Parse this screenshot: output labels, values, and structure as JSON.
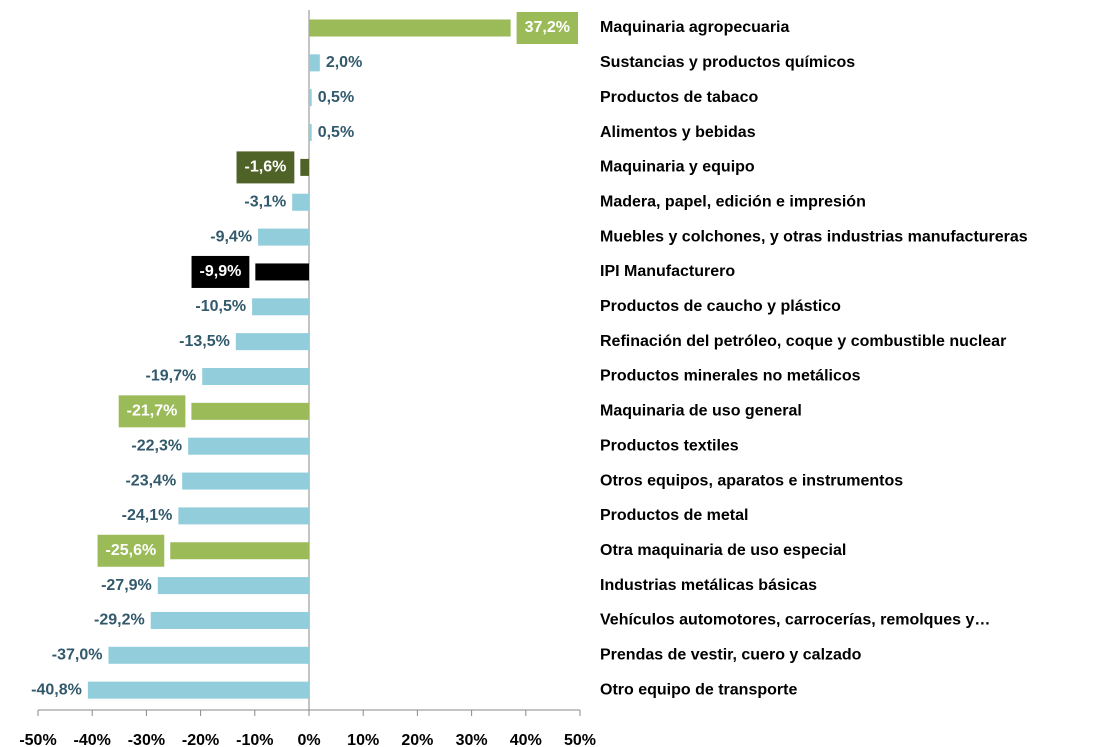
{
  "chart_data": {
    "type": "bar",
    "orientation": "horizontal",
    "categories": [
      "Maquinaria agropecuaria",
      "Sustancias y productos químicos",
      "Productos de tabaco",
      "Alimentos y bebidas",
      "Maquinaria y equipo",
      "Madera, papel, edición e impresión",
      "Muebles y colchones, y otras industrias manufactureras",
      "IPI Manufacturero",
      "Productos de caucho y plástico",
      "Refinación del petróleo, coque y combustible nuclear",
      "Productos minerales no metálicos",
      "Maquinaria de uso general",
      "Productos textiles",
      "Otros equipos, aparatos e instrumentos",
      "Productos de metal",
      "Otra maquinaria de uso especial",
      "Industrias metálicas básicas",
      "Vehículos automotores, carrocerías, remolques y…",
      "Prendas de vestir, cuero y calzado",
      "Otro equipo de transporte"
    ],
    "values": [
      37.2,
      2.0,
      0.5,
      0.5,
      -1.6,
      -3.1,
      -9.4,
      -9.9,
      -10.5,
      -13.5,
      -19.7,
      -21.7,
      -22.3,
      -23.4,
      -24.1,
      -25.6,
      -27.9,
      -29.2,
      -37.0,
      -40.8
    ],
    "value_labels": [
      "37,2%",
      "2,0%",
      "0,5%",
      "0,5%",
      "-1,6%",
      "-3,1%",
      "-9,4%",
      "-9,9%",
      "-10,5%",
      "-13,5%",
      "-19,7%",
      "-21,7%",
      "-22,3%",
      "-23,4%",
      "-24,1%",
      "-25,6%",
      "-27,9%",
      "-29,2%",
      "-37,0%",
      "-40,8%"
    ],
    "color": "#92cddc",
    "colors": [
      "#9bbb59",
      "#92cddc",
      "#92cddc",
      "#92cddc",
      "#4f6228",
      "#92cddc",
      "#92cddc",
      "#000000",
      "#92cddc",
      "#92cddc",
      "#92cddc",
      "#9bbb59",
      "#92cddc",
      "#92cddc",
      "#92cddc",
      "#9bbb59",
      "#92cddc",
      "#92cddc",
      "#92cddc",
      "#92cddc"
    ],
    "xlim": [
      -50,
      50
    ],
    "xticks": [
      {
        "value": -50,
        "label": "-50%"
      },
      {
        "value": -40,
        "label": "-40%"
      },
      {
        "value": -30,
        "label": "-30%"
      },
      {
        "value": -20,
        "label": "-20%"
      },
      {
        "value": -10,
        "label": "-10%"
      },
      {
        "value": 0,
        "label": "0%"
      },
      {
        "value": 10,
        "label": "10%"
      },
      {
        "value": 20,
        "label": "20%"
      },
      {
        "value": 30,
        "label": "30%"
      },
      {
        "value": 40,
        "label": "40%"
      },
      {
        "value": 50,
        "label": "50%"
      }
    ]
  }
}
